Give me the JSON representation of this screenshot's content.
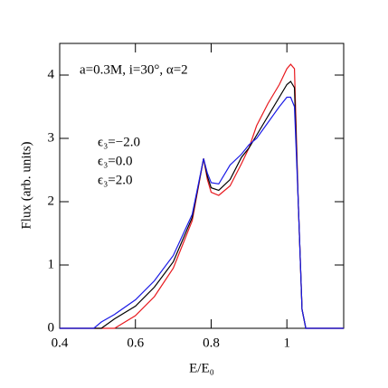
{
  "chart_data": {
    "type": "line",
    "annotation": "a=0.3M, i=30°, α=2",
    "x_label": "E/E₀",
    "y_label": "Flux (arb. units)",
    "x": [
      0.4,
      0.49,
      0.51,
      0.545,
      0.6,
      0.65,
      0.7,
      0.75,
      0.78,
      0.79,
      0.8,
      0.82,
      0.85,
      0.88,
      0.9,
      0.92,
      0.95,
      0.98,
      1.0,
      1.01,
      1.02,
      1.03,
      1.04,
      1.05,
      1.15
    ],
    "series": [
      {
        "name": "ϵ₃=−2.0",
        "color": "#e8191e",
        "values": [
          0,
          0,
          0,
          0,
          0.2,
          0.5,
          0.95,
          1.7,
          2.68,
          2.35,
          2.15,
          2.1,
          2.25,
          2.6,
          2.85,
          3.2,
          3.55,
          3.85,
          4.1,
          4.17,
          4.1,
          2.0,
          0.3,
          0,
          0
        ]
      },
      {
        "name": "ϵ₃=0.0",
        "color": "#000000",
        "values": [
          0,
          0,
          0,
          0.15,
          0.35,
          0.65,
          1.05,
          1.75,
          2.68,
          2.4,
          2.22,
          2.18,
          2.35,
          2.7,
          2.85,
          3.05,
          3.35,
          3.65,
          3.85,
          3.9,
          3.8,
          2.0,
          0.3,
          0,
          0
        ]
      },
      {
        "name": "ϵ₃=2.0",
        "color": "#1a1ae6",
        "values": [
          0,
          0,
          0.1,
          0.22,
          0.45,
          0.75,
          1.15,
          1.8,
          2.68,
          2.45,
          2.3,
          2.28,
          2.58,
          2.75,
          2.9,
          3.0,
          3.25,
          3.5,
          3.65,
          3.65,
          3.5,
          2.0,
          0.3,
          0,
          0
        ]
      }
    ],
    "xlim": [
      0.4,
      1.15
    ],
    "ylim": [
      0,
      4.5
    ],
    "xticks": [
      0.4,
      0.6,
      0.8,
      1
    ],
    "yticks": [
      0,
      1,
      2,
      3,
      4
    ]
  }
}
